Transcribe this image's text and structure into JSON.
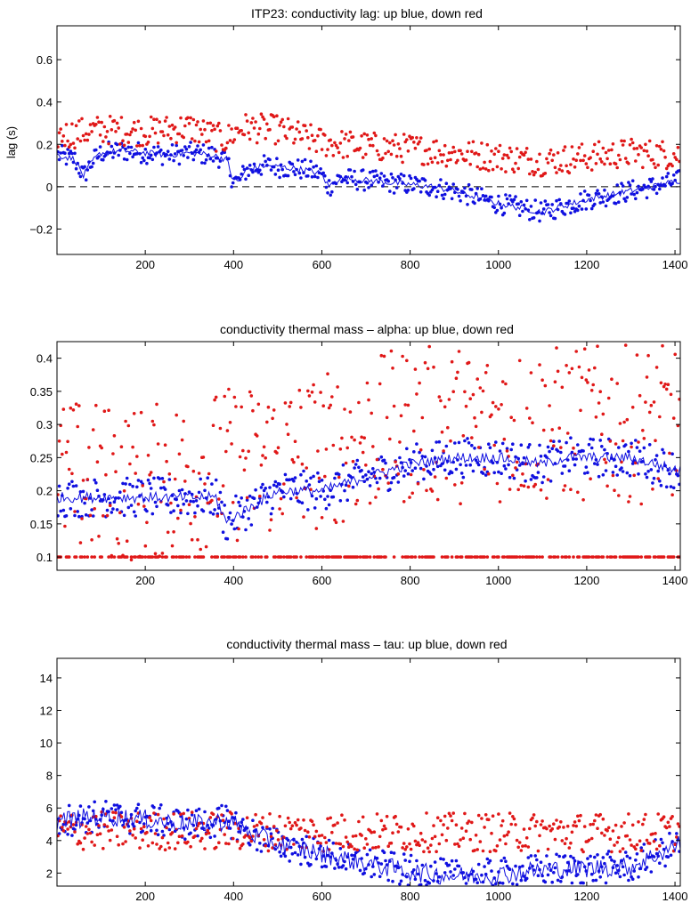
{
  "chart_data": [
    {
      "type": "scatter",
      "title": "ITP23: conductivity lag: up blue, down red",
      "xlabel": "",
      "ylabel": "lag (s)",
      "xlim": [
        0,
        1412
      ],
      "ylim": [
        -0.32,
        0.76
      ],
      "xticks": [
        200,
        400,
        600,
        800,
        1000,
        1200,
        1400
      ],
      "xtick_labels": [
        "200",
        "400",
        "600",
        "800",
        "1000",
        "1200",
        "1400"
      ],
      "yticks": [
        -0.2,
        0,
        0.2,
        0.4,
        0.6
      ],
      "ytick_labels": [
        "−0.2",
        "0",
        "0.2",
        "0.4",
        "0.6"
      ],
      "reference_line": {
        "y": 0,
        "style": "dashed"
      },
      "series": [
        {
          "name": "up",
          "color": "#1010e0",
          "kind": "points",
          "trend": [
            [
              0,
              0.15
            ],
            [
              40,
              0.13
            ],
            [
              60,
              0.05
            ],
            [
              80,
              0.12
            ],
            [
              100,
              0.16
            ],
            [
              150,
              0.17
            ],
            [
              200,
              0.16
            ],
            [
              250,
              0.15
            ],
            [
              300,
              0.16
            ],
            [
              350,
              0.15
            ],
            [
              385,
              0.13
            ],
            [
              395,
              0.05
            ],
            [
              410,
              0.02
            ],
            [
              430,
              0.08
            ],
            [
              470,
              0.1
            ],
            [
              520,
              0.09
            ],
            [
              560,
              0.08
            ],
            [
              600,
              0.06
            ],
            [
              615,
              0.0
            ],
            [
              640,
              0.04
            ],
            [
              700,
              0.03
            ],
            [
              750,
              0.02
            ],
            [
              800,
              0.01
            ],
            [
              850,
              0.0
            ],
            [
              900,
              -0.02
            ],
            [
              950,
              -0.05
            ],
            [
              1000,
              -0.08
            ],
            [
              1050,
              -0.1
            ],
            [
              1100,
              -0.12
            ],
            [
              1150,
              -0.09
            ],
            [
              1200,
              -0.06
            ],
            [
              1250,
              -0.04
            ],
            [
              1300,
              -0.02
            ],
            [
              1350,
              0.0
            ],
            [
              1412,
              0.03
            ]
          ],
          "spread": 0.05
        },
        {
          "name": "down",
          "color": "#e01818",
          "kind": "points",
          "trend": [
            [
              0,
              0.24
            ],
            [
              100,
              0.27
            ],
            [
              200,
              0.26
            ],
            [
              300,
              0.28
            ],
            [
              380,
              0.22
            ],
            [
              420,
              0.28
            ],
            [
              500,
              0.27
            ],
            [
              600,
              0.21
            ],
            [
              700,
              0.19
            ],
            [
              800,
              0.18
            ],
            [
              900,
              0.16
            ],
            [
              1000,
              0.14
            ],
            [
              1100,
              0.12
            ],
            [
              1200,
              0.14
            ],
            [
              1300,
              0.16
            ],
            [
              1412,
              0.15
            ]
          ],
          "spread": 0.07
        },
        {
          "name": "up-smoothed",
          "color": "#1010e0",
          "kind": "line",
          "trend": [
            [
              0,
              0.15
            ],
            [
              40,
              0.13
            ],
            [
              60,
              0.05
            ],
            [
              80,
              0.12
            ],
            [
              100,
              0.16
            ],
            [
              150,
              0.17
            ],
            [
              200,
              0.16
            ],
            [
              250,
              0.15
            ],
            [
              300,
              0.16
            ],
            [
              350,
              0.15
            ],
            [
              385,
              0.13
            ],
            [
              395,
              0.05
            ],
            [
              410,
              0.02
            ],
            [
              430,
              0.08
            ],
            [
              470,
              0.1
            ],
            [
              520,
              0.09
            ],
            [
              560,
              0.08
            ],
            [
              600,
              0.06
            ],
            [
              615,
              0.0
            ],
            [
              640,
              0.04
            ],
            [
              700,
              0.03
            ],
            [
              750,
              0.02
            ],
            [
              800,
              0.01
            ],
            [
              850,
              0.0
            ],
            [
              900,
              -0.02
            ],
            [
              950,
              -0.05
            ],
            [
              1000,
              -0.08
            ],
            [
              1050,
              -0.1
            ],
            [
              1100,
              -0.12
            ],
            [
              1150,
              -0.09
            ],
            [
              1200,
              -0.06
            ],
            [
              1250,
              -0.04
            ],
            [
              1300,
              -0.02
            ],
            [
              1350,
              0.0
            ],
            [
              1412,
              0.03
            ]
          ],
          "spread": 0.015
        }
      ]
    },
    {
      "type": "scatter",
      "title": "conductivity thermal mass – alpha: up blue, down red",
      "xlabel": "",
      "ylabel": "",
      "xlim": [
        0,
        1412
      ],
      "ylim": [
        0.08,
        0.425
      ],
      "xticks": [
        200,
        400,
        600,
        800,
        1000,
        1200,
        1400
      ],
      "xtick_labels": [
        "200",
        "400",
        "600",
        "800",
        "1000",
        "1200",
        "1400"
      ],
      "yticks": [
        0.1,
        0.15,
        0.2,
        0.25,
        0.3,
        0.35,
        0.4
      ],
      "ytick_labels": [
        "0.1",
        "0.15",
        "0.2",
        "0.25",
        "0.3",
        "0.35",
        "0.4"
      ],
      "reference_line": null,
      "series": [
        {
          "name": "up",
          "color": "#1010e0",
          "kind": "points",
          "trend": [
            [
              0,
              0.19
            ],
            [
              100,
              0.19
            ],
            [
              200,
              0.19
            ],
            [
              300,
              0.19
            ],
            [
              360,
              0.19
            ],
            [
              385,
              0.15
            ],
            [
              400,
              0.16
            ],
            [
              450,
              0.18
            ],
            [
              500,
              0.2
            ],
            [
              600,
              0.2
            ],
            [
              650,
              0.21
            ],
            [
              700,
              0.22
            ],
            [
              800,
              0.24
            ],
            [
              900,
              0.25
            ],
            [
              1000,
              0.25
            ],
            [
              1100,
              0.24
            ],
            [
              1150,
              0.25
            ],
            [
              1200,
              0.25
            ],
            [
              1300,
              0.25
            ],
            [
              1412,
              0.23
            ]
          ],
          "spread": 0.03
        },
        {
          "name": "down",
          "color": "#e01818",
          "kind": "points",
          "trend": [
            [
              0,
              0.22
            ],
            [
              200,
              0.21
            ],
            [
              400,
              0.24
            ],
            [
              600,
              0.26
            ],
            [
              800,
              0.3
            ],
            [
              1000,
              0.3
            ],
            [
              1200,
              0.3
            ],
            [
              1412,
              0.3
            ]
          ],
          "spread": 0.12
        },
        {
          "name": "down-floor",
          "color": "#e01818",
          "kind": "points",
          "trend": [
            [
              0,
              0.1
            ],
            [
              1412,
              0.1
            ]
          ],
          "spread": 0.0
        },
        {
          "name": "up-smoothed",
          "color": "#1010e0",
          "kind": "line",
          "trend": [
            [
              0,
              0.19
            ],
            [
              100,
              0.19
            ],
            [
              200,
              0.19
            ],
            [
              300,
              0.19
            ],
            [
              360,
              0.19
            ],
            [
              385,
              0.15
            ],
            [
              400,
              0.16
            ],
            [
              450,
              0.18
            ],
            [
              500,
              0.2
            ],
            [
              600,
              0.2
            ],
            [
              650,
              0.21
            ],
            [
              700,
              0.22
            ],
            [
              800,
              0.24
            ],
            [
              900,
              0.25
            ],
            [
              1000,
              0.25
            ],
            [
              1100,
              0.24
            ],
            [
              1150,
              0.25
            ],
            [
              1200,
              0.25
            ],
            [
              1300,
              0.25
            ],
            [
              1412,
              0.23
            ]
          ],
          "spread": 0.008
        }
      ]
    },
    {
      "type": "scatter",
      "title": "conductivity thermal mass – tau: up blue, down red",
      "xlabel": "",
      "ylabel": "",
      "xlim": [
        0,
        1412
      ],
      "ylim": [
        1.2,
        15.2
      ],
      "xticks": [
        200,
        400,
        600,
        800,
        1000,
        1200,
        1400
      ],
      "xtick_labels": [
        "200",
        "400",
        "600",
        "800",
        "1000",
        "1200",
        "1400"
      ],
      "yticks": [
        2,
        4,
        6,
        8,
        10,
        12,
        14
      ],
      "ytick_labels": [
        "2",
        "4",
        "6",
        "8",
        "10",
        "12",
        "14"
      ],
      "reference_line": null,
      "series": [
        {
          "name": "up",
          "color": "#1010e0",
          "kind": "points",
          "trend": [
            [
              0,
              5.2
            ],
            [
              100,
              5.5
            ],
            [
              200,
              5.3
            ],
            [
              300,
              5.0
            ],
            [
              390,
              5.2
            ],
            [
              450,
              4.3
            ],
            [
              500,
              3.8
            ],
            [
              600,
              3.2
            ],
            [
              700,
              2.6
            ],
            [
              800,
              2.1
            ],
            [
              900,
              1.8
            ],
            [
              1000,
              1.9
            ],
            [
              1100,
              2.2
            ],
            [
              1200,
              2.3
            ],
            [
              1300,
              2.4
            ],
            [
              1412,
              3.8
            ]
          ],
          "spread": 1.0
        },
        {
          "name": "down",
          "color": "#e01818",
          "kind": "points",
          "trend": [
            [
              0,
              4.6
            ],
            [
              200,
              4.6
            ],
            [
              400,
              4.6
            ],
            [
              600,
              4.5
            ],
            [
              800,
              4.5
            ],
            [
              1000,
              4.5
            ],
            [
              1200,
              4.5
            ],
            [
              1412,
              4.5
            ]
          ],
          "spread": 1.2
        },
        {
          "name": "up-smoothed",
          "color": "#1010e0",
          "kind": "line",
          "trend": [
            [
              0,
              5.2
            ],
            [
              100,
              5.5
            ],
            [
              200,
              5.3
            ],
            [
              300,
              5.0
            ],
            [
              390,
              5.2
            ],
            [
              450,
              4.3
            ],
            [
              500,
              3.8
            ],
            [
              600,
              3.2
            ],
            [
              700,
              2.6
            ],
            [
              800,
              2.1
            ],
            [
              900,
              1.8
            ],
            [
              1000,
              1.9
            ],
            [
              1100,
              2.2
            ],
            [
              1200,
              2.3
            ],
            [
              1300,
              2.4
            ],
            [
              1412,
              3.8
            ]
          ],
          "spread": 0.6
        }
      ]
    }
  ]
}
